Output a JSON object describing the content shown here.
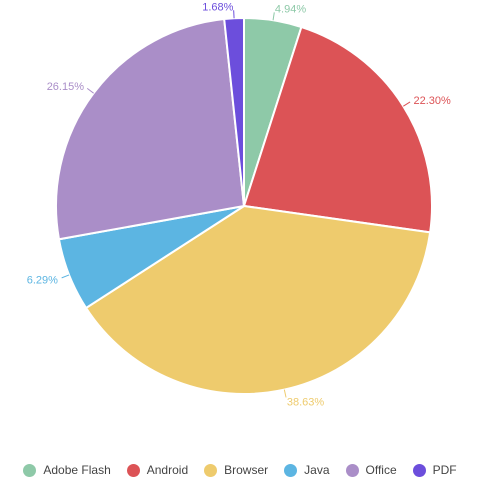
{
  "chart_data": {
    "type": "pie",
    "title": "",
    "categories": [
      "Adobe Flash",
      "Android",
      "Browser",
      "Java",
      "Office",
      "PDF"
    ],
    "values": [
      4.94,
      22.3,
      38.63,
      6.29,
      26.15,
      1.68
    ],
    "value_labels": [
      "4.94%",
      "22.30%",
      "38.63%",
      "6.29%",
      "26.15%",
      "1.68%"
    ],
    "colors": [
      "#8ec9a8",
      "#dc5356",
      "#eecb6d",
      "#5cb5e2",
      "#aa8ec8",
      "#6c4edc"
    ],
    "legend_position": "bottom"
  }
}
